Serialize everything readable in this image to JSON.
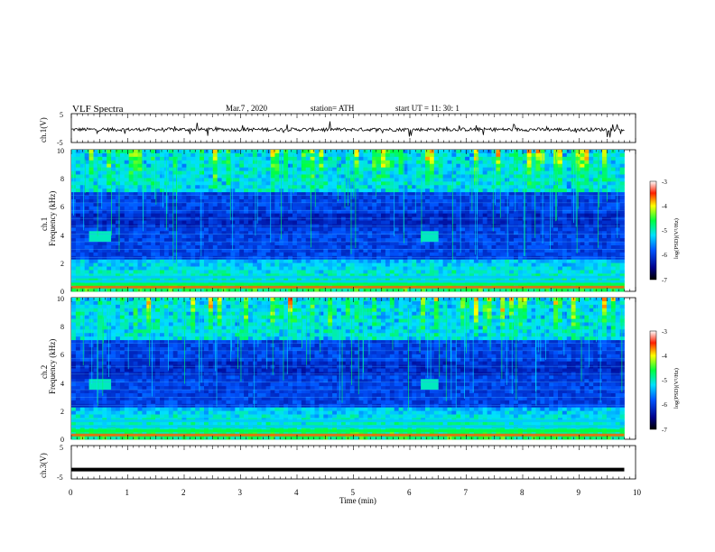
{
  "header": {
    "title": "VLF  Spectra",
    "date": "Mar.7  , 2020",
    "station": "station= ATH",
    "start": "start  UT  =    11: 30: 1"
  },
  "chart_data": [
    {
      "type": "line",
      "name": "ch1-waveform",
      "ylabel": "ch.1(V)",
      "ylim": [
        -5,
        5
      ],
      "yticks": [
        "5",
        "-5"
      ],
      "xlim": [
        0,
        10
      ],
      "baseline": -0.5,
      "color": "#000000"
    },
    {
      "type": "heatmap",
      "name": "ch1-spectrogram",
      "ylabel_channel": "ch.1",
      "ylabel": "Frequency  (kHz)",
      "ylim": [
        0,
        10
      ],
      "yticks": [
        "0",
        "2",
        "4",
        "6",
        "8",
        "10"
      ],
      "xlim": [
        0,
        9.8
      ],
      "features": {
        "noise_bursts_min": [
          [
            0.35,
            0.7
          ],
          [
            6.2,
            6.5
          ]
        ],
        "burst_frequency_khz": 3.9,
        "strong_low_bands_khz": [
          0.3,
          0.5,
          0.7,
          1.0
        ]
      },
      "colorbar": {
        "label": "log(PSD)(V²/Hz)",
        "ticks": [
          "-3",
          "-4",
          "-5",
          "-6",
          "-7"
        ],
        "range": [
          -7,
          -3
        ]
      }
    },
    {
      "type": "heatmap",
      "name": "ch2-spectrogram",
      "ylabel_channel": "ch.2",
      "ylabel": "Frequency  (kHz)",
      "ylim": [
        0,
        10
      ],
      "yticks": [
        "0",
        "2",
        "4",
        "6",
        "8",
        "10"
      ],
      "xlim": [
        0,
        9.8
      ],
      "features": {
        "noise_bursts_min": [
          [
            0.35,
            0.7
          ],
          [
            6.2,
            6.5
          ]
        ],
        "burst_frequency_khz": 3.9,
        "strong_low_bands_khz": [
          0.3,
          0.6,
          0.9,
          1.3
        ]
      },
      "colorbar": {
        "label": "log(PSD)(V²/Hz)",
        "ticks": [
          "-3",
          "-4",
          "-5",
          "-6",
          "-7"
        ],
        "range": [
          -7,
          -3
        ]
      }
    },
    {
      "type": "line",
      "name": "ch3-waveform",
      "ylabel": "ch.3(V)",
      "ylim": [
        -5,
        5
      ],
      "yticks": [
        "5",
        "0",
        "-5"
      ],
      "xlim": [
        0,
        10
      ],
      "values_constant": -2.2,
      "color": "#000000"
    }
  ],
  "x_axis": {
    "label": "Time  (min)",
    "ticks": [
      "0",
      "1",
      "2",
      "3",
      "4",
      "5",
      "6",
      "7",
      "8",
      "9",
      "10"
    ],
    "range": [
      0,
      10
    ]
  }
}
